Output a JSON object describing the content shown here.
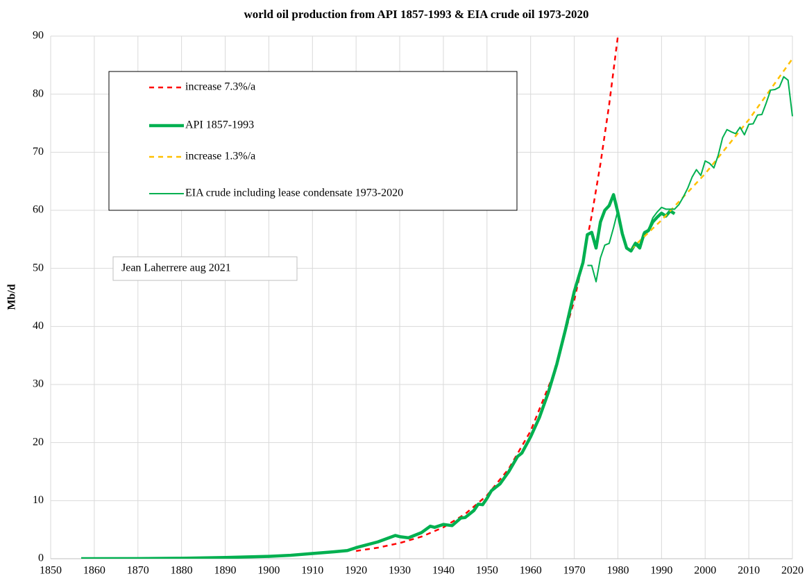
{
  "chart_data": {
    "type": "line",
    "title": "world oil production from API 1857-1993 & EIA crude oil 1973-2020",
    "ylabel": "Mb/d",
    "note": "Jean Laherrere aug 2021",
    "legend": "upper left",
    "grid": true,
    "xlim": [
      1850,
      2020
    ],
    "xticks": [
      1850,
      1860,
      1870,
      1880,
      1890,
      1900,
      1910,
      1920,
      1930,
      1940,
      1950,
      1960,
      1970,
      1980,
      1990,
      2000,
      2010,
      2020
    ],
    "ylim": [
      0,
      90
    ],
    "yticks": [
      0,
      10,
      20,
      30,
      40,
      50,
      60,
      70,
      80,
      90
    ],
    "series": [
      {
        "name": "increase 7.3%/a",
        "color": "#ff0000",
        "style": "dashed",
        "linewidth": 2.5,
        "x": [
          1920,
          1925,
          1930,
          1935,
          1940,
          1945,
          1950,
          1955,
          1960,
          1965,
          1970,
          1972,
          1974,
          1976,
          1978,
          1980
        ],
        "values": [
          1.33,
          1.9,
          2.7,
          3.8,
          5.4,
          7.7,
          10.9,
          15.5,
          22,
          31.3,
          44.5,
          51.3,
          59.1,
          68,
          78.2,
          90
        ]
      },
      {
        "name": "API 1857-1993",
        "color": "#00b050",
        "style": "solid",
        "linewidth": 4.5,
        "x": [
          1857,
          1870,
          1880,
          1890,
          1900,
          1905,
          1910,
          1915,
          1918,
          1920,
          1925,
          1929,
          1930,
          1932,
          1935,
          1937,
          1938,
          1940,
          1942,
          1944,
          1945,
          1947,
          1948,
          1949,
          1950,
          1951,
          1953,
          1955,
          1957,
          1958,
          1960,
          1962,
          1964,
          1966,
          1968,
          1970,
          1972,
          1973,
          1974,
          1975,
          1976,
          1977,
          1978,
          1979,
          1980,
          1981,
          1982,
          1983,
          1984,
          1985,
          1986,
          1987,
          1988,
          1989,
          1990,
          1991,
          1992,
          1993
        ],
        "values": [
          0,
          0.02,
          0.08,
          0.21,
          0.41,
          0.59,
          0.9,
          1.2,
          1.4,
          1.9,
          2.9,
          4.0,
          3.8,
          3.6,
          4.5,
          5.6,
          5.4,
          5.9,
          5.7,
          7.0,
          7.1,
          8.3,
          9.4,
          9.3,
          10.4,
          11.7,
          12.9,
          15.0,
          17.6,
          18.2,
          21.0,
          24.3,
          28.5,
          33.5,
          39.5,
          46.0,
          51.0,
          55.8,
          56.2,
          53.5,
          58.0,
          60.0,
          60.8,
          62.7,
          59.6,
          56.0,
          53.5,
          53.0,
          54.3,
          53.5,
          56.0,
          56.5,
          58.0,
          58.8,
          59.5,
          59.0,
          59.9,
          59.4
        ]
      },
      {
        "name": "increase 1.3%/a",
        "color": "#ffc000",
        "style": "dashed",
        "linewidth": 2.5,
        "x": [
          1983,
          1990,
          2000,
          2010,
          2020
        ],
        "values": [
          53.3,
          58.3,
          66.3,
          75.6,
          86.1
        ]
      },
      {
        "name": "EIA crude including lease condensate 1973-2020",
        "color": "#00b050",
        "style": "solid",
        "linewidth": 2,
        "x": [
          1973,
          1974,
          1975,
          1976,
          1977,
          1978,
          1979,
          1980,
          1981,
          1982,
          1983,
          1984,
          1985,
          1986,
          1987,
          1988,
          1989,
          1990,
          1991,
          1992,
          1993,
          1994,
          1995,
          1996,
          1997,
          1998,
          1999,
          2000,
          2001,
          2002,
          2003,
          2004,
          2005,
          2006,
          2007,
          2008,
          2009,
          2010,
          2011,
          2012,
          2013,
          2014,
          2015,
          2016,
          2017,
          2018,
          2019,
          2020
        ],
        "values": [
          50.5,
          50.5,
          47.7,
          51.8,
          54.0,
          54.3,
          57.0,
          60.0,
          56.0,
          53.5,
          53.2,
          54.5,
          54.0,
          56.3,
          56.7,
          58.7,
          59.7,
          60.5,
          60.2,
          60.2,
          60.2,
          61.0,
          62.3,
          63.8,
          65.7,
          67.0,
          66.0,
          68.5,
          68.1,
          67.3,
          69.5,
          72.5,
          73.9,
          73.5,
          73.2,
          74.3,
          73.0,
          74.8,
          74.9,
          76.4,
          76.5,
          78.5,
          80.7,
          80.8,
          81.2,
          83.0,
          82.4,
          76.2
        ]
      }
    ]
  }
}
